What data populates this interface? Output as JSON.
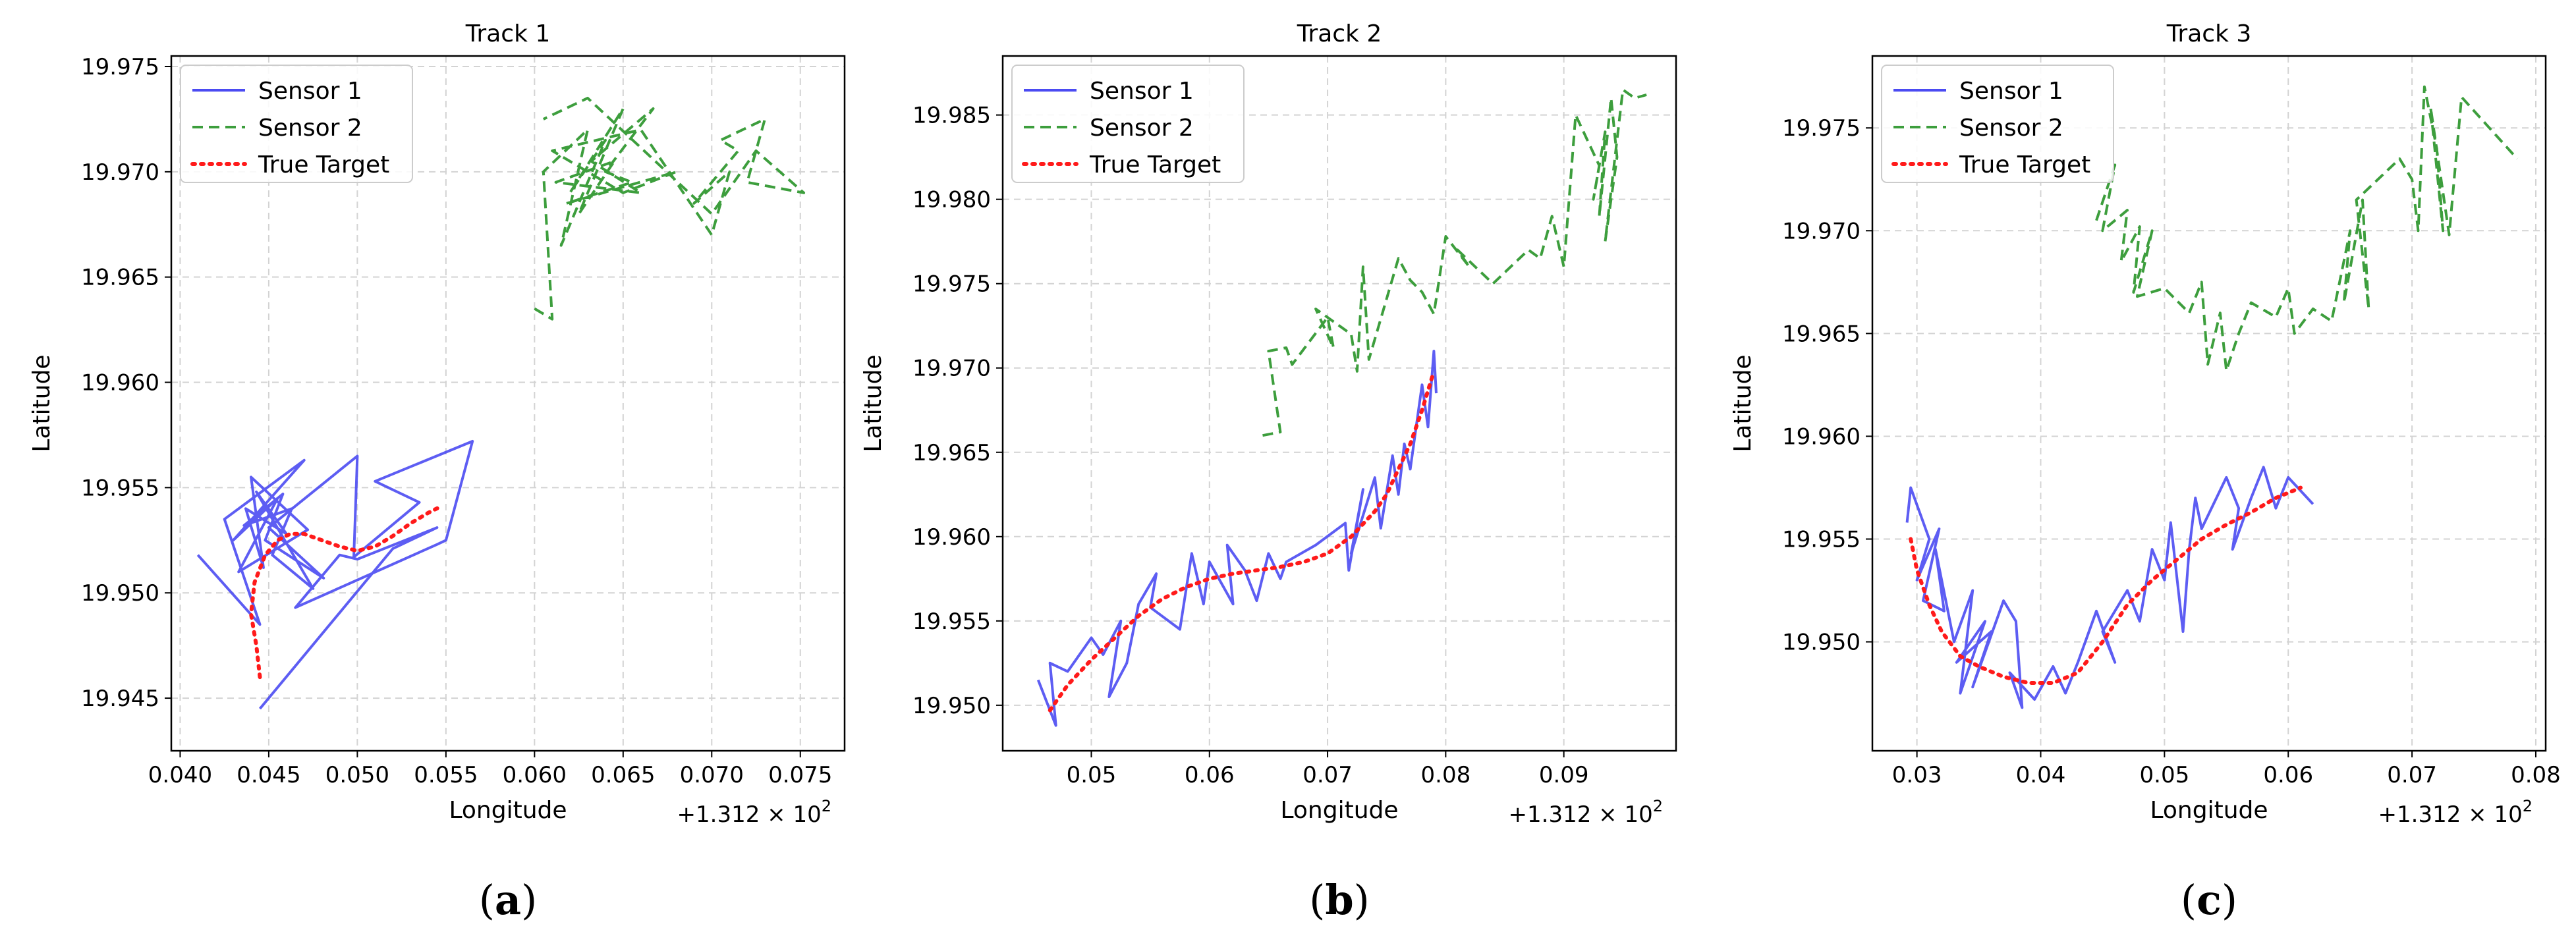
{
  "chart_data": [
    {
      "type": "line",
      "title": "Track 1",
      "caption_letter": "a",
      "xlabel": "Longitude",
      "ylabel": "Latitude",
      "x_offset_label": "+1.312 × 10",
      "x_offset_exp": "2",
      "xlim": [
        0.0395,
        0.0775
      ],
      "ylim": [
        19.9425,
        19.9755
      ],
      "xticks": [
        0.04,
        0.045,
        0.05,
        0.055,
        0.06,
        0.065,
        0.07,
        0.075
      ],
      "xtick_labels": [
        "0.040",
        "0.045",
        "0.050",
        "0.055",
        "0.060",
        "0.065",
        "0.070",
        "0.075"
      ],
      "yticks": [
        19.945,
        19.95,
        19.955,
        19.96,
        19.965,
        19.97,
        19.975
      ],
      "ytick_labels": [
        "19.945",
        "19.950",
        "19.955",
        "19.960",
        "19.965",
        "19.970",
        "19.975"
      ],
      "grid": true,
      "legend_position": "upper-left",
      "series": [
        {
          "name": "Sensor 1",
          "color": "#4b4bf2",
          "style": "solid",
          "x": [
            0.041,
            0.0445,
            0.0425,
            0.047,
            0.043,
            0.0455,
            0.0433,
            0.0472,
            0.044,
            0.0447,
            0.0437,
            0.046,
            0.0443,
            0.0475,
            0.0452,
            0.0463,
            0.0436,
            0.0458,
            0.0448,
            0.0481,
            0.045,
            0.05,
            0.0498,
            0.0535,
            0.051,
            0.0565,
            0.055,
            0.0545,
            0.0465,
            0.049,
            0.05,
            0.0545,
            0.052,
            0.0445
          ],
          "y": [
            19.9518,
            19.9485,
            19.9535,
            19.9563,
            19.9525,
            19.9545,
            19.951,
            19.953,
            19.9555,
            19.9512,
            19.954,
            19.9528,
            19.9548,
            19.9502,
            19.9518,
            19.954,
            19.9532,
            19.9547,
            19.9525,
            19.9507,
            19.9531,
            19.9565,
            19.9517,
            19.9543,
            19.9553,
            19.9572,
            19.9525,
            19.9523,
            19.9493,
            19.9518,
            19.9516,
            19.9531,
            19.9521,
            19.9445
          ]
        },
        {
          "name": "Sensor 2",
          "color": "#3d9e3d",
          "style": "dashed",
          "x": [
            0.06,
            0.061,
            0.0605,
            0.063,
            0.0615,
            0.064,
            0.062,
            0.065,
            0.0625,
            0.0645,
            0.0612,
            0.066,
            0.0632,
            0.0667,
            0.064,
            0.0655,
            0.0618,
            0.068,
            0.065,
            0.061,
            0.066,
            0.07,
            0.071,
            0.069,
            0.0715,
            0.0705,
            0.073,
            0.072,
            0.0752,
            0.0725,
            0.07,
            0.063,
            0.0605
          ],
          "y": [
            19.9635,
            19.963,
            19.97,
            19.972,
            19.9665,
            19.9715,
            19.969,
            19.973,
            19.968,
            19.9705,
            19.9695,
            19.969,
            19.9705,
            19.973,
            19.97,
            19.9695,
            19.9685,
            19.97,
            19.969,
            19.971,
            19.972,
            19.967,
            19.97,
            19.9685,
            19.971,
            19.9715,
            19.9725,
            19.9695,
            19.969,
            19.971,
            19.968,
            19.9735,
            19.9725
          ]
        },
        {
          "name": "True Target",
          "color": "#ff1a1a",
          "style": "dotted",
          "x": [
            0.0445,
            0.0443,
            0.044,
            0.0442,
            0.0448,
            0.0455,
            0.0462,
            0.047,
            0.048,
            0.049,
            0.05,
            0.051,
            0.052,
            0.053,
            0.054,
            0.0547
          ],
          "y": [
            19.946,
            19.9475,
            19.949,
            19.9505,
            19.9518,
            19.9525,
            19.9528,
            19.9528,
            19.9525,
            19.9522,
            19.952,
            19.9522,
            19.9527,
            19.9533,
            19.9538,
            19.9541
          ]
        }
      ]
    },
    {
      "type": "line",
      "title": "Track 2",
      "caption_letter": "b",
      "xlabel": "Longitude",
      "ylabel": "Latitude",
      "x_offset_label": "+1.312 × 10",
      "x_offset_exp": "2",
      "xlim": [
        0.0425,
        0.0995
      ],
      "ylim": [
        19.9473,
        19.9885
      ],
      "xticks": [
        0.05,
        0.06,
        0.07,
        0.08,
        0.09
      ],
      "xtick_labels": [
        "0.05",
        "0.06",
        "0.07",
        "0.08",
        "0.09"
      ],
      "yticks": [
        19.95,
        19.955,
        19.96,
        19.965,
        19.97,
        19.975,
        19.98,
        19.985
      ],
      "ytick_labels": [
        "19.950",
        "19.955",
        "19.960",
        "19.965",
        "19.970",
        "19.975",
        "19.980",
        "19.985"
      ],
      "grid": true,
      "legend_position": "upper-left",
      "series": [
        {
          "name": "Sensor 1",
          "color": "#4b4bf2",
          "style": "solid",
          "x": [
            0.0455,
            0.047,
            0.0465,
            0.048,
            0.05,
            0.051,
            0.0525,
            0.0515,
            0.053,
            0.054,
            0.0555,
            0.055,
            0.0575,
            0.0585,
            0.0595,
            0.06,
            0.062,
            0.0615,
            0.063,
            0.064,
            0.065,
            0.066,
            0.0665,
            0.069,
            0.0715,
            0.0718,
            0.073,
            0.072,
            0.074,
            0.0745,
            0.0755,
            0.076,
            0.0765,
            0.077,
            0.0775,
            0.078,
            0.0785,
            0.079,
            0.0792
          ],
          "y": [
            19.9515,
            19.9488,
            19.9525,
            19.952,
            19.954,
            19.953,
            19.955,
            19.9505,
            19.9525,
            19.956,
            19.9578,
            19.9558,
            19.9545,
            19.959,
            19.956,
            19.9585,
            19.956,
            19.9595,
            19.958,
            19.9562,
            19.959,
            19.9575,
            19.9585,
            19.9595,
            19.9608,
            19.958,
            19.9628,
            19.959,
            19.9635,
            19.9605,
            19.9648,
            19.9625,
            19.9655,
            19.964,
            19.9665,
            19.969,
            19.9665,
            19.971,
            19.9685
          ]
        },
        {
          "name": "Sensor 2",
          "color": "#3d9e3d",
          "style": "dashed",
          "x": [
            0.0645,
            0.066,
            0.065,
            0.0665,
            0.067,
            0.07,
            0.0705,
            0.069,
            0.072,
            0.0725,
            0.073,
            0.0735,
            0.076,
            0.077,
            0.078,
            0.079,
            0.08,
            0.082,
            0.081,
            0.084,
            0.087,
            0.088,
            0.089,
            0.09,
            0.091,
            0.092,
            0.093,
            0.0925,
            0.0935,
            0.093,
            0.094,
            0.0945,
            0.0935,
            0.095,
            0.096,
            0.097
          ],
          "y": [
            19.966,
            19.9662,
            19.971,
            19.9712,
            19.9702,
            19.973,
            19.9712,
            19.9735,
            19.972,
            19.9698,
            19.976,
            19.9705,
            19.9765,
            19.9752,
            19.9745,
            19.9732,
            19.9778,
            19.976,
            19.977,
            19.975,
            19.977,
            19.9765,
            19.979,
            19.976,
            19.985,
            19.9835,
            19.982,
            19.98,
            19.984,
            19.979,
            19.986,
            19.9825,
            19.9775,
            19.9865,
            19.986,
            19.9862
          ]
        },
        {
          "name": "True Target",
          "color": "#ff1a1a",
          "style": "dotted",
          "x": [
            0.0465,
            0.048,
            0.05,
            0.052,
            0.054,
            0.056,
            0.058,
            0.06,
            0.062,
            0.064,
            0.066,
            0.068,
            0.07,
            0.072,
            0.074,
            0.075,
            0.076,
            0.077,
            0.078,
            0.079
          ],
          "y": [
            19.9497,
            19.9512,
            19.9527,
            19.954,
            19.9553,
            19.9563,
            19.957,
            19.9575,
            19.9578,
            19.958,
            19.9582,
            19.9585,
            19.959,
            19.96,
            19.9615,
            19.9625,
            19.964,
            19.9655,
            19.9675,
            19.9698
          ]
        }
      ]
    },
    {
      "type": "line",
      "title": "Track 3",
      "caption_letter": "c",
      "xlabel": "Longitude",
      "ylabel": "Latitude",
      "x_offset_label": "+1.312 × 10",
      "x_offset_exp": "2",
      "xlim": [
        0.0264,
        0.0808
      ],
      "ylim": [
        19.9447,
        19.9785
      ],
      "xticks": [
        0.03,
        0.04,
        0.05,
        0.06,
        0.07,
        0.08
      ],
      "xtick_labels": [
        "0.03",
        "0.04",
        "0.05",
        "0.06",
        "0.07",
        "0.08"
      ],
      "yticks": [
        19.95,
        19.955,
        19.96,
        19.965,
        19.97,
        19.975
      ],
      "ytick_labels": [
        "19.950",
        "19.955",
        "19.960",
        "19.965",
        "19.970",
        "19.975"
      ],
      "grid": true,
      "legend_position": "upper-left",
      "series": [
        {
          "name": "Sensor 1",
          "color": "#4b4bf2",
          "style": "solid",
          "x": [
            0.0292,
            0.0295,
            0.031,
            0.03,
            0.0318,
            0.0305,
            0.0322,
            0.0315,
            0.033,
            0.0345,
            0.0335,
            0.0355,
            0.0332,
            0.036,
            0.0345,
            0.037,
            0.038,
            0.0385,
            0.0375,
            0.0395,
            0.041,
            0.042,
            0.043,
            0.0445,
            0.046,
            0.045,
            0.047,
            0.048,
            0.049,
            0.05,
            0.0505,
            0.0515,
            0.052,
            0.0525,
            0.053,
            0.055,
            0.056,
            0.0555,
            0.057,
            0.058,
            0.059,
            0.06,
            0.062
          ],
          "y": [
            19.9558,
            19.9575,
            19.955,
            19.953,
            19.9555,
            19.952,
            19.9515,
            19.9545,
            19.95,
            19.9525,
            19.9475,
            19.951,
            19.949,
            19.9505,
            19.9478,
            19.952,
            19.951,
            19.9468,
            19.9485,
            19.9472,
            19.9488,
            19.9475,
            19.949,
            19.9515,
            19.949,
            19.9505,
            19.9525,
            19.951,
            19.9545,
            19.953,
            19.9558,
            19.9505,
            19.9545,
            19.957,
            19.9555,
            19.958,
            19.9565,
            19.9545,
            19.957,
            19.9585,
            19.9565,
            19.958,
            19.9567
          ]
        },
        {
          "name": "Sensor 2",
          "color": "#3d9e3d",
          "style": "dashed",
          "x": [
            0.0445,
            0.046,
            0.045,
            0.047,
            0.0465,
            0.048,
            0.0475,
            0.049,
            0.0478,
            0.05,
            0.052,
            0.053,
            0.0535,
            0.0545,
            0.055,
            0.056,
            0.057,
            0.059,
            0.06,
            0.0605,
            0.062,
            0.0635,
            0.065,
            0.0645,
            0.066,
            0.0665,
            0.0655,
            0.069,
            0.07,
            0.0705,
            0.071,
            0.072,
            0.0725,
            0.0715,
            0.073,
            0.074,
            0.0785
          ],
          "y": [
            19.9705,
            19.9732,
            19.97,
            19.971,
            19.9685,
            19.9702,
            19.967,
            19.97,
            19.9668,
            19.9672,
            19.966,
            19.9675,
            19.9635,
            19.966,
            19.9632,
            19.965,
            19.9665,
            19.9658,
            19.9672,
            19.965,
            19.9662,
            19.9656,
            19.97,
            19.9665,
            19.9715,
            19.9662,
            19.9715,
            19.9735,
            19.9725,
            19.97,
            19.977,
            19.974,
            19.97,
            19.976,
            19.9698,
            19.9765,
            19.9735
          ]
        },
        {
          "name": "True Target",
          "color": "#ff1a1a",
          "style": "dotted",
          "x": [
            0.0295,
            0.03,
            0.031,
            0.032,
            0.0335,
            0.035,
            0.037,
            0.039,
            0.041,
            0.043,
            0.045,
            0.047,
            0.049,
            0.051,
            0.053,
            0.055,
            0.057,
            0.059,
            0.061
          ],
          "y": [
            19.955,
            19.9535,
            19.9518,
            19.9505,
            19.9493,
            19.9488,
            19.9483,
            19.948,
            19.948,
            19.9485,
            19.95,
            19.9518,
            19.953,
            19.954,
            19.955,
            19.9557,
            19.9563,
            19.957,
            19.9575
          ]
        }
      ]
    }
  ]
}
